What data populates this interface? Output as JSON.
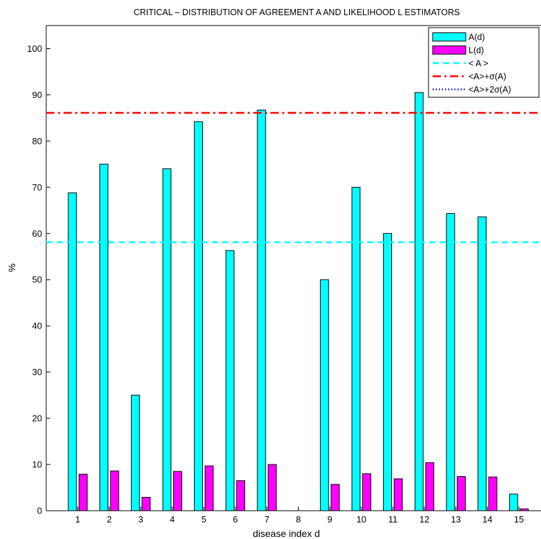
{
  "chart_data": {
    "type": "bar",
    "title": "CRITICAL –   DISTRIBUTION OF AGREEMENT A AND LIKELIHOOD L ESTIMATORS",
    "xlabel": "disease index d",
    "ylabel": "%",
    "ylim": [
      0,
      105
    ],
    "xlim": [
      0,
      15.7
    ],
    "yticks": [
      0,
      10,
      20,
      30,
      40,
      50,
      60,
      70,
      80,
      90,
      100
    ],
    "categories": [
      "1",
      "2",
      "3",
      "4",
      "5",
      "6",
      "7",
      "8",
      "9",
      "10",
      "11",
      "12",
      "13",
      "14",
      "15"
    ],
    "series": [
      {
        "name": "A(d)",
        "color": "#00ffff",
        "values": [
          68.8,
          75.0,
          25.0,
          74.0,
          84.2,
          56.3,
          86.7,
          0,
          50.0,
          70.0,
          60.0,
          90.5,
          64.3,
          63.6,
          3.6
        ]
      },
      {
        "name": "L(d)",
        "color": "#ff00ff",
        "values": [
          7.9,
          8.6,
          2.9,
          8.5,
          9.7,
          6.5,
          10.0,
          0,
          5.7,
          8.0,
          6.9,
          10.4,
          7.4,
          7.3,
          0.4
        ]
      }
    ],
    "reference_lines": [
      {
        "name": "< A >",
        "value": 58.1,
        "color": "#00ffff",
        "style": "dashed"
      },
      {
        "name": "<A>+σ(A)",
        "value": 86.1,
        "color": "#ff0000",
        "style": "dashdot"
      },
      {
        "name": "<A>+2σ(A)",
        "value": null,
        "color": "#0000ff",
        "style": "dotted"
      }
    ],
    "legend": {
      "position": "top-right"
    },
    "grid": false
  }
}
